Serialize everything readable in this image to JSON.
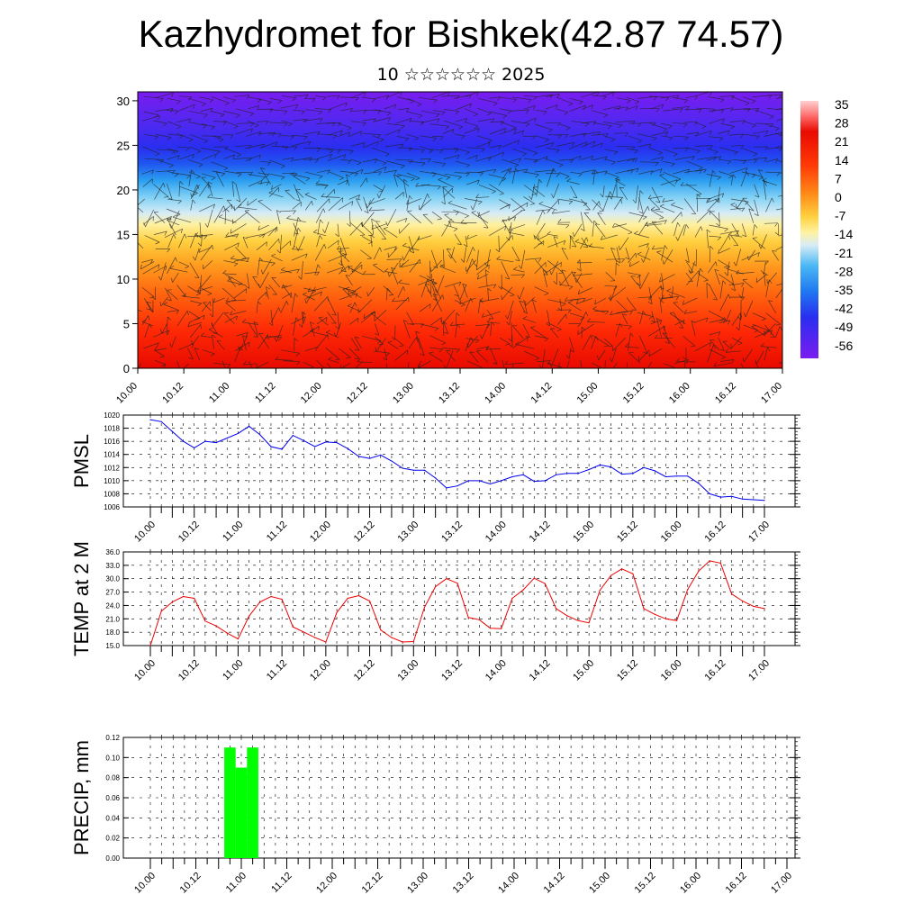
{
  "header": {
    "title": "Kazhydromet for Bishkek(42.87 74.57)",
    "subtitle": "10 ☆☆☆☆☆☆ 2025"
  },
  "colors": {
    "pmsl_line": "#0000ee",
    "temp_line": "#ee0000",
    "precip_bar": "#00ff00",
    "colorscale": [
      "#7a1cf0",
      "#3b2bf0",
      "#1f56f0",
      "#1aa0f0",
      "#7fd4f5",
      "#cfe9f5",
      "#fff2a0",
      "#ffd84a",
      "#ffaa22",
      "#ff7a10",
      "#ff4a08",
      "#e80a00",
      "#ff6a6a",
      "#ffd0d0"
    ]
  },
  "chart_data": [
    {
      "type": "heatmap",
      "name_hint": "vertical cross-section with wind barbs",
      "x_ticks": [
        "10.00",
        "10.12",
        "11.00",
        "11.12",
        "12.00",
        "12.12",
        "13.00",
        "13.12",
        "14.00",
        "14.12",
        "15.00",
        "15.12",
        "16.00",
        "16.12",
        "17.00"
      ],
      "y_ticks": [
        "0",
        "5",
        "10",
        "15",
        "20",
        "25",
        "30"
      ],
      "ylim": [
        0,
        31
      ],
      "colorbar_labels": [
        "35",
        "28",
        "21",
        "14",
        "7",
        "0",
        "-7",
        "-14",
        "-21",
        "-28",
        "-35",
        "-42",
        "-49",
        "-56"
      ],
      "colorbar_range": [
        -60,
        38
      ]
    },
    {
      "type": "line",
      "ylabel": "PMSL",
      "x_ticks": [
        "10.00",
        "10.12",
        "11.00",
        "11.12",
        "12.00",
        "12.12",
        "13.00",
        "13.12",
        "14.00",
        "14.12",
        "15.00",
        "15.12",
        "16.00",
        "16.12",
        "17.00"
      ],
      "y_ticks": [
        "1006",
        "1008",
        "1010",
        "1012",
        "1014",
        "1016",
        "1018",
        "1020"
      ],
      "ylim": [
        1006,
        1020
      ],
      "values": [
        1019.3,
        1019.0,
        1017.5,
        1016.0,
        1015.0,
        1016.0,
        1015.8,
        1016.5,
        1017.2,
        1018.3,
        1017.0,
        1015.2,
        1014.8,
        1016.9,
        1016.1,
        1015.2,
        1015.9,
        1015.8,
        1014.9,
        1013.7,
        1013.4,
        1013.9,
        1013.0,
        1011.9,
        1011.6,
        1011.6,
        1010.4,
        1008.9,
        1009.2,
        1010.0,
        1010.0,
        1009.5,
        1010.0,
        1010.6,
        1010.9,
        1009.9,
        1010.0,
        1010.9,
        1011.1,
        1011.1,
        1011.7,
        1012.4,
        1012.1,
        1011.0,
        1011.1,
        1012.0,
        1011.5,
        1010.6,
        1010.7,
        1010.7,
        1009.6,
        1008.0,
        1007.5,
        1007.6,
        1007.2,
        1007.1,
        1007.0
      ]
    },
    {
      "type": "line",
      "ylabel": "TEMP at 2 M",
      "x_ticks": [
        "10.00",
        "10.12",
        "11.00",
        "11.12",
        "12.00",
        "12.12",
        "13.00",
        "13.12",
        "14.00",
        "14.12",
        "15.00",
        "15.12",
        "16.00",
        "16.12",
        "17.00"
      ],
      "y_ticks": [
        "15.0",
        "18.0",
        "21.0",
        "24.0",
        "27.0",
        "30.0",
        "33.0",
        "36.0"
      ],
      "ylim": [
        15,
        36
      ],
      "values": [
        15.0,
        22.7,
        24.8,
        26.0,
        25.6,
        20.5,
        19.4,
        17.8,
        16.5,
        21.6,
        24.8,
        26.0,
        25.4,
        19.2,
        18.0,
        16.8,
        15.8,
        22.4,
        25.6,
        26.2,
        25.0,
        18.5,
        16.8,
        15.8,
        15.9,
        23.6,
        28.2,
        30.0,
        29.0,
        21.3,
        20.8,
        18.9,
        18.8,
        25.6,
        27.5,
        30.1,
        28.9,
        23.3,
        21.7,
        20.6,
        20.1,
        27.4,
        30.7,
        32.2,
        31.1,
        23.3,
        22.0,
        21.0,
        20.6,
        27.6,
        31.7,
        34.0,
        33.5,
        26.6,
        25.0,
        23.8,
        23.3
      ]
    },
    {
      "type": "bar",
      "ylabel": "PRECIP, mm",
      "x_ticks": [
        "10.00",
        "10.12",
        "11.00",
        "11.12",
        "12.00",
        "12.12",
        "13.00",
        "13.12",
        "14.00",
        "14.12",
        "15.00",
        "15.12",
        "16.00",
        "16.12",
        "17.00"
      ],
      "y_ticks": [
        "0.00",
        "0.02",
        "0.04",
        "0.06",
        "0.08",
        "0.10",
        "0.12"
      ],
      "ylim": [
        0,
        0.12
      ],
      "bars": [
        {
          "x_step": 7,
          "value": 0.11
        },
        {
          "x_step": 8,
          "value": 0.09
        },
        {
          "x_step": 9,
          "value": 0.11
        }
      ]
    }
  ]
}
